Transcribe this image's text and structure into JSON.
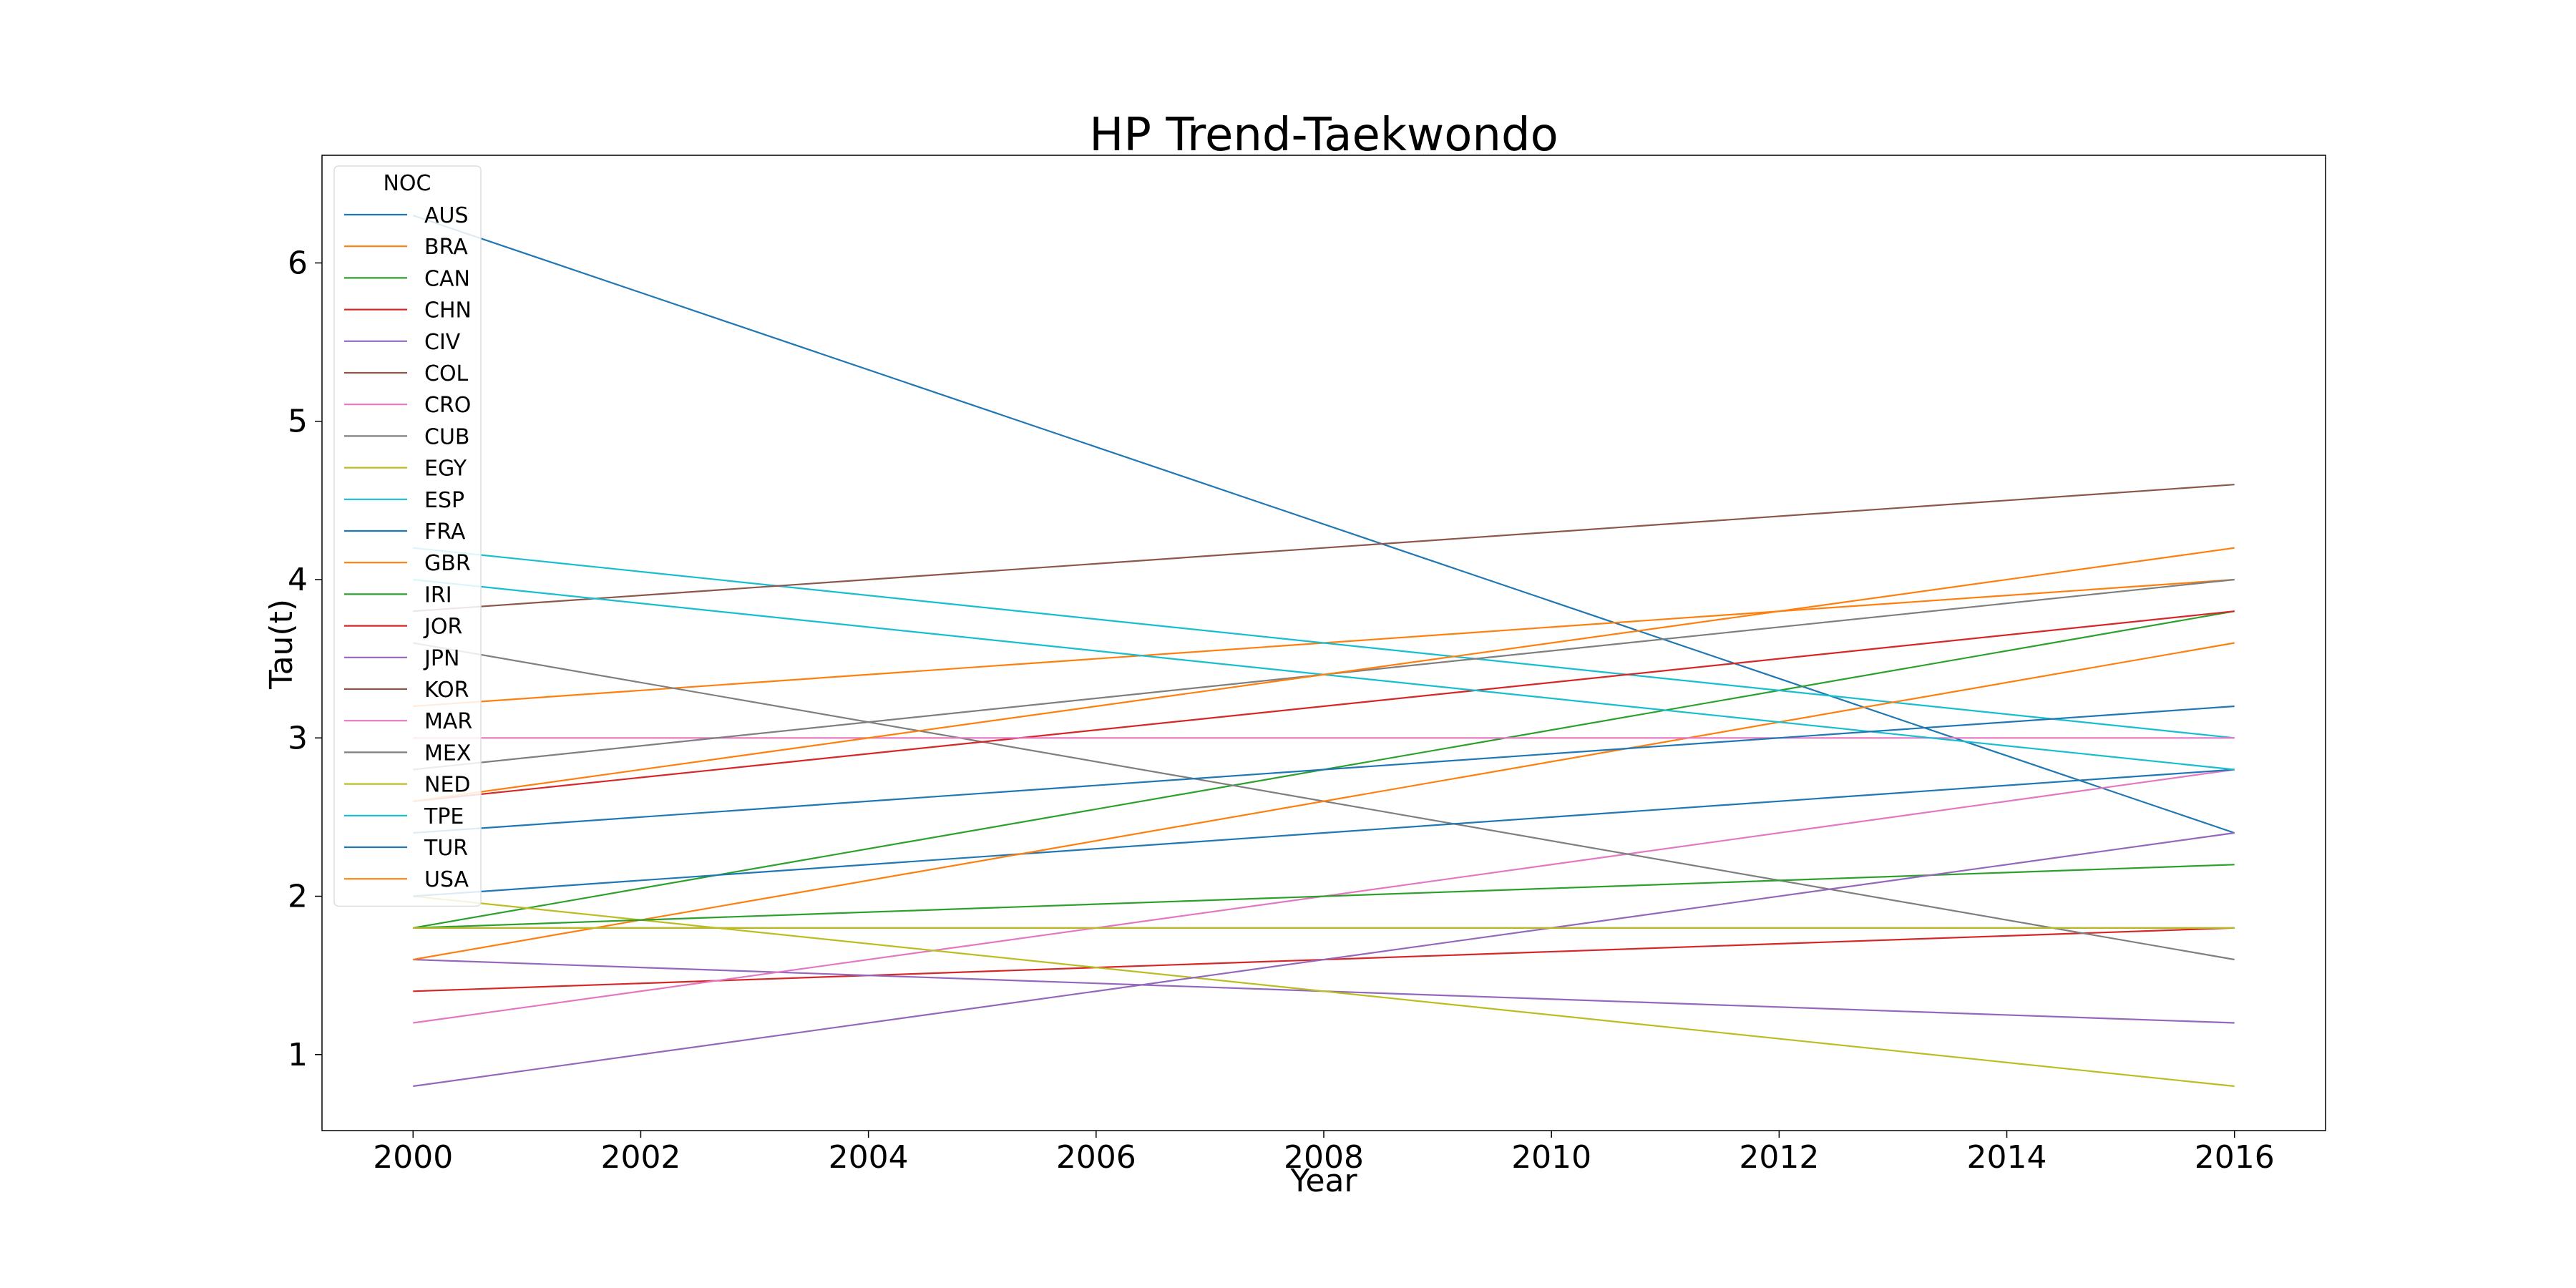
{
  "chart_data": {
    "type": "line",
    "title": "HP Trend-Taekwondo",
    "xlabel": "Year",
    "ylabel": "Tau(t)",
    "xlim": [
      1999.2,
      2016.8
    ],
    "ylim": [
      0.52,
      6.68
    ],
    "xticks": [
      2000,
      2002,
      2004,
      2006,
      2008,
      2010,
      2012,
      2014,
      2016
    ],
    "yticks": [
      1,
      2,
      3,
      4,
      5,
      6
    ],
    "grid": false,
    "legend": {
      "title": "NOC",
      "placement": "top-left"
    },
    "x": [
      2000,
      2016
    ],
    "series": [
      {
        "name": "AUS",
        "color": "#1f77b4",
        "values": [
          6.3,
          2.4
        ]
      },
      {
        "name": "BRA",
        "color": "#ff7f0e",
        "values": [
          3.2,
          4.0
        ]
      },
      {
        "name": "CAN",
        "color": "#2ca02c",
        "values": [
          1.8,
          3.8
        ]
      },
      {
        "name": "CHN",
        "color": "#d62728",
        "values": [
          1.4,
          1.8
        ]
      },
      {
        "name": "CIV",
        "color": "#9467bd",
        "values": [
          1.6,
          1.2
        ]
      },
      {
        "name": "COL",
        "color": "#8c564b",
        "values": [
          1.8,
          1.8
        ]
      },
      {
        "name": "CRO",
        "color": "#e377c2",
        "values": [
          1.2,
          2.8
        ]
      },
      {
        "name": "CUB",
        "color": "#7f7f7f",
        "values": [
          3.6,
          1.6
        ]
      },
      {
        "name": "EGY",
        "color": "#bcbd22",
        "values": [
          2.0,
          0.8
        ]
      },
      {
        "name": "ESP",
        "color": "#17becf",
        "values": [
          4.2,
          3.0
        ]
      },
      {
        "name": "FRA",
        "color": "#1f77b4",
        "values": [
          2.0,
          2.8
        ]
      },
      {
        "name": "GBR",
        "color": "#ff7f0e",
        "values": [
          1.6,
          3.6
        ]
      },
      {
        "name": "IRI",
        "color": "#2ca02c",
        "values": [
          1.8,
          2.2
        ]
      },
      {
        "name": "JOR",
        "color": "#d62728",
        "values": [
          2.6,
          3.8
        ]
      },
      {
        "name": "JPN",
        "color": "#9467bd",
        "values": [
          0.8,
          2.4
        ]
      },
      {
        "name": "KOR",
        "color": "#8c564b",
        "values": [
          3.8,
          4.6
        ]
      },
      {
        "name": "MAR",
        "color": "#e377c2",
        "values": [
          3.0,
          3.0
        ]
      },
      {
        "name": "MEX",
        "color": "#7f7f7f",
        "values": [
          2.8,
          4.0
        ]
      },
      {
        "name": "NED",
        "color": "#bcbd22",
        "values": [
          1.8,
          1.8
        ]
      },
      {
        "name": "TPE",
        "color": "#17becf",
        "values": [
          4.0,
          2.8
        ]
      },
      {
        "name": "TUR",
        "color": "#1f77b4",
        "values": [
          2.4,
          3.2
        ]
      },
      {
        "name": "USA",
        "color": "#ff7f0e",
        "values": [
          2.6,
          4.2
        ]
      }
    ]
  }
}
